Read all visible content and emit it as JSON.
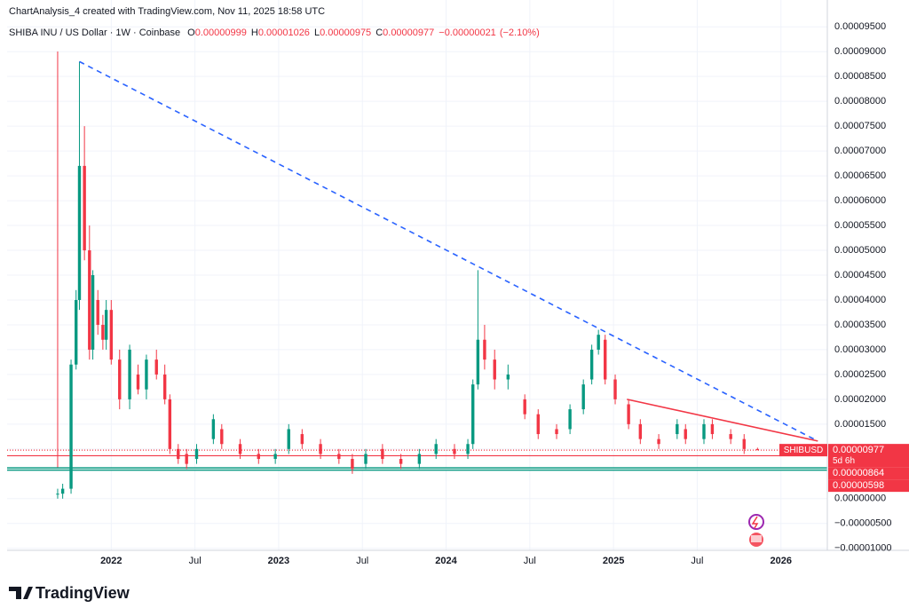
{
  "header": {
    "credit": "ChartAnalysis_4 created with TradingView.com, Nov 11, 2025 18:58 UTC",
    "symbol": "SHIBA INU / US Dollar · 1W · Coinbase",
    "ohlc": [
      {
        "key": "O",
        "value": 9.99e-06,
        "label": "0.00000999"
      },
      {
        "key": "H",
        "value": 1.026e-05,
        "label": "0.00001026"
      },
      {
        "key": "L",
        "value": 9.75e-06,
        "label": "0.00000975"
      },
      {
        "key": "C",
        "value": 9.77e-06,
        "label": "0.00000977"
      }
    ],
    "change": {
      "value": -2.1e-07,
      "label": "−0.00000021"
    },
    "change_pct": {
      "value": -2.1,
      "label": "(−2.10%)"
    }
  },
  "footer": {
    "brand": "TradingView"
  },
  "chart_data": {
    "type": "candlestick",
    "up_color": "#089981",
    "down_color": "#f23645",
    "grid": true,
    "xlim": [
      2021.378,
      2026.277
    ],
    "ylim": [
      -1.04e-05,
      0.0001004
    ],
    "xticks": [
      2022,
      {
        "value": 2022.5,
        "label": "Jul"
      },
      2023,
      {
        "value": 2023.5,
        "label": "Jul"
      },
      2024,
      {
        "value": 2024.5,
        "label": "Jul"
      },
      2025,
      {
        "value": 2025.5,
        "label": "Jul"
      },
      2026
    ],
    "yticks": [
      {
        "value": 9.5e-05,
        "label": "0.00009500"
      },
      {
        "value": 9e-05,
        "label": "0.00009000"
      },
      {
        "value": 8.5e-05,
        "label": "0.00008500"
      },
      {
        "value": 8e-05,
        "label": "0.00008000"
      },
      {
        "value": 7.5e-05,
        "label": "0.00007500"
      },
      {
        "value": 7e-05,
        "label": "0.00007000"
      },
      {
        "value": 6.5e-05,
        "label": "0.00006500"
      },
      {
        "value": 6e-05,
        "label": "0.00006000"
      },
      {
        "value": 5.5e-05,
        "label": "0.00005500"
      },
      {
        "value": 5e-05,
        "label": "0.00005000"
      },
      {
        "value": 4.5e-05,
        "label": "0.00004500"
      },
      {
        "value": 4e-05,
        "label": "0.00004000"
      },
      {
        "value": 3.5e-05,
        "label": "0.00003500"
      },
      {
        "value": 3e-05,
        "label": "0.00003000"
      },
      {
        "value": 2.5e-05,
        "label": "0.00002500"
      },
      {
        "value": 2e-05,
        "label": "0.00002000"
      },
      {
        "value": 1.5e-05,
        "label": "0.00001500"
      },
      {
        "value": 1e-05,
        "label": "0.00001000"
      },
      {
        "value": 0,
        "label": "0.00000000"
      },
      {
        "value": -5e-06,
        "label": "−0.00000500"
      },
      {
        "value": -1e-05,
        "label": "−0.00001000"
      }
    ],
    "candles": {
      "x": [
        2021.68,
        2021.71,
        2021.76,
        2021.79,
        2021.81,
        2021.84,
        2021.87,
        2021.89,
        2021.92,
        2021.95,
        2021.97,
        2022.0,
        2022.05,
        2022.11,
        2022.16,
        2022.21,
        2022.27,
        2022.32,
        2022.35,
        2022.4,
        2022.45,
        2022.51,
        2022.61,
        2022.66,
        2022.77,
        2022.88,
        2022.98,
        2023.06,
        2023.14,
        2023.25,
        2023.36,
        2023.44,
        2023.52,
        2023.62,
        2023.73,
        2023.84,
        2023.94,
        2024.05,
        2024.13,
        2024.16,
        2024.19,
        2024.23,
        2024.29,
        2024.37,
        2024.47,
        2024.55,
        2024.66,
        2024.74,
        2024.82,
        2024.87,
        2024.91,
        2024.95,
        2025.01,
        2025.09,
        2025.16,
        2025.27,
        2025.38,
        2025.43,
        2025.54,
        2025.59,
        2025.7,
        2025.78,
        2025.86
      ],
      "open": [
        1e-06,
        1e-06,
        2e-06,
        2.7e-05,
        4e-05,
        6.7e-05,
        5e-05,
        3e-05,
        4e-05,
        3.5e-05,
        3.2e-05,
        3.8e-05,
        2.8e-05,
        2e-05,
        2.5e-05,
        2.2e-05,
        2.8e-05,
        2.5e-05,
        2e-05,
        1e-05,
        9e-06,
        8e-06,
        1.2e-05,
        1.4e-05,
        1.1e-05,
        9e-06,
        8e-06,
        1e-05,
        1.3e-05,
        1.1e-05,
        9e-06,
        8e-06,
        7e-06,
        1e-05,
        8e-06,
        7e-06,
        9e-06,
        1e-05,
        9e-06,
        1.1e-05,
        2.3e-05,
        3.2e-05,
        2.8e-05,
        2.4e-05,
        2e-05,
        1.7e-05,
        1.4e-05,
        1.4e-05,
        1.8e-05,
        2.4e-05,
        3e-05,
        3.2e-05,
        2.4e-05,
        1.9e-05,
        1.5e-05,
        1.2e-05,
        1.3e-05,
        1.4e-05,
        1.2e-05,
        1.5e-05,
        1.3e-05,
        1.2e-05,
        9.99e-06
      ],
      "high": [
        2e-06,
        3e-06,
        2.8e-05,
        4.2e-05,
        8.8e-05,
        7.5e-05,
        5.5e-05,
        4.6e-05,
        4.2e-05,
        3.7e-05,
        4e-05,
        4e-05,
        3e-05,
        3.1e-05,
        2.7e-05,
        2.9e-05,
        3e-05,
        2.7e-05,
        2.1e-05,
        1.1e-05,
        1e-05,
        1.1e-05,
        1.7e-05,
        1.5e-05,
        1.2e-05,
        1e-05,
        1e-05,
        1.5e-05,
        1.4e-05,
        1.2e-05,
        1e-05,
        9e-06,
        1e-05,
        1.1e-05,
        9e-06,
        1e-05,
        1.2e-05,
        1.1e-05,
        1.2e-05,
        2.4e-05,
        4.6e-05,
        3.5e-05,
        3e-05,
        2.7e-05,
        2.1e-05,
        1.8e-05,
        1.5e-05,
        1.9e-05,
        2.4e-05,
        3.1e-05,
        3.4e-05,
        3.3e-05,
        2.5e-05,
        2e-05,
        1.6e-05,
        1.3e-05,
        1.6e-05,
        1.5e-05,
        1.6e-05,
        1.6e-05,
        1.4e-05,
        1.3e-05,
        1.026e-05
      ],
      "low": [
        0,
        0,
        1e-06,
        2.6e-05,
        3.8e-05,
        4.8e-05,
        2.8e-05,
        2.8e-05,
        3.3e-05,
        3e-05,
        3e-05,
        2.7e-05,
        1.8e-05,
        1.8e-05,
        2.1e-05,
        2e-05,
        2.4e-05,
        1.9e-05,
        9e-06,
        7e-06,
        6e-06,
        7e-06,
        1.1e-05,
        1e-05,
        8e-06,
        7e-06,
        7e-06,
        9e-06,
        1e-05,
        8e-06,
        7e-06,
        5e-06,
        6e-06,
        7e-06,
        6e-06,
        6e-06,
        8e-06,
        8e-06,
        8e-06,
        1e-05,
        2.2e-05,
        2.6e-05,
        2.2e-05,
        2.2e-05,
        1.6e-05,
        1.2e-05,
        1.2e-05,
        1.3e-05,
        1.7e-05,
        2.3e-05,
        2.9e-05,
        2.3e-05,
        1.9e-05,
        1.4e-05,
        1.1e-05,
        1e-05,
        1.2e-05,
        1.1e-05,
        1.1e-05,
        1.2e-05,
        1.1e-05,
        9e-06,
        9.75e-06
      ],
      "close": [
        1e-06,
        2e-06,
        2.7e-05,
        4e-05,
        6.7e-05,
        5e-05,
        3e-05,
        4.5e-05,
        3.5e-05,
        3.2e-05,
        3.8e-05,
        2.8e-05,
        2e-05,
        3e-05,
        2.2e-05,
        2.8e-05,
        2.5e-05,
        2e-05,
        1e-05,
        8e-06,
        7e-06,
        1e-05,
        1.6e-05,
        1.1e-05,
        9e-06,
        8e-06,
        9e-06,
        1.4e-05,
        1.1e-05,
        9e-06,
        8e-06,
        6e-06,
        9e-06,
        8e-06,
        7e-06,
        9e-06,
        1.1e-05,
        9e-06,
        1.1e-05,
        2.3e-05,
        3.2e-05,
        2.8e-05,
        2.4e-05,
        2.5e-05,
        1.7e-05,
        1.3e-05,
        1.3e-05,
        1.8e-05,
        2.3e-05,
        3e-05,
        3.3e-05,
        2.4e-05,
        2e-05,
        1.5e-05,
        1.2e-05,
        1.1e-05,
        1.5e-05,
        1.2e-05,
        1.5e-05,
        1.3e-05,
        1.2e-05,
        1e-05,
        9.77e-06
      ]
    },
    "trendlines": [
      {
        "color": "#2962ff",
        "style": "dashed",
        "x": [
          2021.81,
          2026.22
        ],
        "y": [
          8.8e-05,
          1.16e-05
        ]
      },
      {
        "color": "#f23645",
        "style": "solid",
        "x": [
          2025.08,
          2026.22
        ],
        "y": [
          2e-05,
          1.16e-05
        ]
      }
    ],
    "marker_x": 2021.68,
    "price_lines": [
      {
        "name": "SHIBUSD",
        "value": 9.77e-06,
        "label": "0.00000977",
        "countdown": "5d 6h",
        "color": "#f23645",
        "line_color": "#f23645",
        "style": "dotted"
      },
      {
        "value": 8.64e-06,
        "label": "0.00000864",
        "color": "#f23645",
        "line_color": "#f23645",
        "style": "solid"
      },
      {
        "value": 5.98e-06,
        "label": "0.00000598",
        "color": "#f23645",
        "line_color": "#089981",
        "style": "double"
      }
    ]
  }
}
